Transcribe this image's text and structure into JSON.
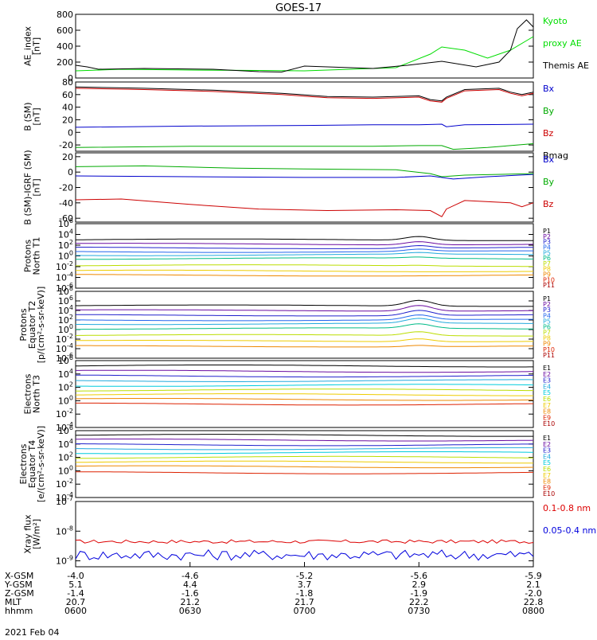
{
  "title": "GOES-17",
  "date": "2021 Feb 04",
  "panels": [
    {
      "id": "ae",
      "ylabel": [
        "AE_index",
        "[nT]"
      ],
      "ticks": [
        "800",
        "600",
        "400",
        "200",
        "0"
      ],
      "legend": [
        {
          "text": "Kyoto",
          "color": "#00dd00"
        },
        {
          "text": "proxy AE",
          "color": "#00dd00"
        },
        {
          "text": "Themis AE",
          "color": "#000000"
        }
      ]
    },
    {
      "id": "bsm",
      "ylabel": [
        "B (SM)",
        "[nT]"
      ],
      "ticks": [
        "80",
        "60",
        "40",
        "20",
        "0",
        "-20"
      ],
      "legend": [
        {
          "text": "Bx",
          "color": "#0000cc"
        },
        {
          "text": "By",
          "color": "#00aa00"
        },
        {
          "text": "Bz",
          "color": "#cc0000"
        },
        {
          "text": "Bmag",
          "color": "#000000"
        }
      ]
    },
    {
      "id": "bigrf",
      "ylabel": [
        "B (SM)-IGRF (SM)",
        "[nT]"
      ],
      "ticks": [
        "20",
        "0",
        "-20",
        "-40",
        "-60"
      ],
      "legend": [
        {
          "text": "Bx",
          "color": "#0000cc"
        },
        {
          "text": "By",
          "color": "#00aa00"
        },
        {
          "text": "Bz",
          "color": "#cc0000"
        }
      ]
    },
    {
      "id": "pn",
      "ylabel": [
        "Protons",
        "North T1"
      ],
      "ticks": [
        "10^6",
        "10^4",
        "10^2",
        "10^0",
        "10^-2",
        "10^-4",
        "10^-6"
      ],
      "legend": [
        {
          "text": "P1",
          "color": "#000000"
        },
        {
          "text": "P2",
          "color": "#6a0ca0"
        },
        {
          "text": "P3",
          "color": "#2020cc"
        },
        {
          "text": "P4",
          "color": "#2266ee"
        },
        {
          "text": "P5",
          "color": "#22aadd"
        },
        {
          "text": "P6",
          "color": "#00bb88"
        },
        {
          "text": "P7",
          "color": "#bbdd00"
        },
        {
          "text": "P8",
          "color": "#eecc00"
        },
        {
          "text": "P9",
          "color": "#ee8800"
        },
        {
          "text": "P10",
          "color": "#dd2200"
        },
        {
          "text": "P11",
          "color": "#aa0000"
        }
      ]
    },
    {
      "id": "pe",
      "ylabel": [
        "Protons",
        "Equator T2",
        "[p/(cm²-s-sr-keV)]"
      ],
      "ticks": [
        "10^8",
        "10^6",
        "10^4",
        "10^2",
        "10^0",
        "10^-2",
        "10^-4",
        "10^-6"
      ],
      "legend": [
        {
          "text": "P1",
          "color": "#000000"
        },
        {
          "text": "P2",
          "color": "#6a0ca0"
        },
        {
          "text": "P3",
          "color": "#2020cc"
        },
        {
          "text": "P4",
          "color": "#2266ee"
        },
        {
          "text": "P5",
          "color": "#22aadd"
        },
        {
          "text": "P6",
          "color": "#00bb88"
        },
        {
          "text": "P7",
          "color": "#bbdd00"
        },
        {
          "text": "P8",
          "color": "#eecc00"
        },
        {
          "text": "P9",
          "color": "#ee8800"
        },
        {
          "text": "P10",
          "color": "#dd2200"
        },
        {
          "text": "P11",
          "color": "#aa0000"
        }
      ]
    },
    {
      "id": "en",
      "ylabel": [
        "Electrons",
        "North T3"
      ],
      "ticks": [
        "10^6",
        "10^4",
        "10^2",
        "10^0",
        "10^-2",
        "10^-4"
      ],
      "legend": [
        {
          "text": "E1",
          "color": "#000000"
        },
        {
          "text": "E2",
          "color": "#6a0ca0"
        },
        {
          "text": "E3",
          "color": "#2020cc"
        },
        {
          "text": "E4",
          "color": "#22aadd"
        },
        {
          "text": "E5",
          "color": "#00ccdd"
        },
        {
          "text": "E6",
          "color": "#bbdd00"
        },
        {
          "text": "E7",
          "color": "#eecc00"
        },
        {
          "text": "E8",
          "color": "#ee8800"
        },
        {
          "text": "E9",
          "color": "#dd2200"
        },
        {
          "text": "E10",
          "color": "#aa0000"
        }
      ]
    },
    {
      "id": "ee",
      "ylabel": [
        "Electrons",
        "Equator T4",
        "[e/(cm²-s-sr-keV)]"
      ],
      "ticks": [
        "10^6",
        "10^4",
        "10^2",
        "10^0",
        "10^-2",
        "10^-4"
      ],
      "legend": [
        {
          "text": "E1",
          "color": "#000000"
        },
        {
          "text": "E2",
          "color": "#6a0ca0"
        },
        {
          "text": "E3",
          "color": "#2020cc"
        },
        {
          "text": "E4",
          "color": "#22aadd"
        },
        {
          "text": "E5",
          "color": "#00ccdd"
        },
        {
          "text": "E6",
          "color": "#bbdd00"
        },
        {
          "text": "E7",
          "color": "#eecc00"
        },
        {
          "text": "E8",
          "color": "#ee8800"
        },
        {
          "text": "E9",
          "color": "#dd2200"
        },
        {
          "text": "E10",
          "color": "#aa0000"
        }
      ]
    },
    {
      "id": "xray",
      "ylabel": [
        "Xray flux",
        "[W/m²]"
      ],
      "ticks": [
        "10^-7",
        "10^-8",
        "10^-9"
      ],
      "legend": [
        {
          "text": "0.1-0.8 nm",
          "color": "#dd0000"
        },
        {
          "text": "0.05-0.4 nm",
          "color": "#0000dd"
        }
      ]
    }
  ],
  "xaxis": {
    "rows": [
      {
        "label": "X-GSM",
        "values": [
          "-4.0",
          "-4.6",
          "-5.2",
          "-5.6",
          "-5.9"
        ]
      },
      {
        "label": "Y-GSM",
        "values": [
          "5.1",
          "4.4",
          "3.7",
          "2.9",
          "2.1"
        ]
      },
      {
        "label": "Z-GSM",
        "values": [
          "-1.4",
          "-1.6",
          "-1.8",
          "-1.9",
          "-2.0"
        ]
      },
      {
        "label": "MLT",
        "values": [
          "20.7",
          "21.2",
          "21.7",
          "22.2",
          "22.8"
        ]
      },
      {
        "label": "hhmm",
        "values": [
          "0600",
          "0630",
          "0700",
          "0730",
          "0800"
        ]
      }
    ]
  },
  "chart_data": {
    "type": "line",
    "x_unit": "UT time (hours, 2021 Feb 04)",
    "xlim": [
      6.0,
      8.0
    ],
    "panels": [
      {
        "id": "ae",
        "ylim": [
          0,
          800
        ],
        "scale": "linear",
        "series": [
          {
            "name": "Kyoto proxy AE",
            "color": "#00dd00",
            "x": [
              6.0,
              6.2,
              6.5,
              6.8,
              7.0,
              7.2,
              7.4,
              7.55,
              7.6,
              7.7,
              7.8,
              7.9,
              8.0
            ],
            "y": [
              90,
              110,
              100,
              95,
              90,
              110,
              130,
              300,
              390,
              350,
              250,
              350,
              520
            ]
          },
          {
            "name": "Themis AE",
            "color": "#000000",
            "x": [
              6.0,
              6.05,
              6.1,
              6.3,
              6.6,
              6.8,
              6.9,
              7.0,
              7.1,
              7.3,
              7.45,
              7.6,
              7.75,
              7.85,
              7.9,
              7.93,
              7.97,
              8.0
            ],
            "y": [
              160,
              140,
              110,
              120,
              110,
              80,
              75,
              150,
              140,
              120,
              160,
              210,
              140,
              200,
              350,
              620,
              730,
              640
            ]
          }
        ]
      },
      {
        "id": "bsm",
        "ylim": [
          -30,
          80
        ],
        "scale": "linear",
        "series": [
          {
            "name": "Bx",
            "color": "#0000cc",
            "x": [
              6.0,
              6.5,
              7.0,
              7.3,
              7.5,
              7.6,
              7.62,
              7.7,
              8.0
            ],
            "y": [
              8,
              10,
              11,
              12,
              12,
              13,
              9,
              12,
              13
            ]
          },
          {
            "name": "By",
            "color": "#00aa00",
            "x": [
              6.0,
              6.5,
              7.0,
              7.3,
              7.5,
              7.6,
              7.65,
              7.8,
              8.0
            ],
            "y": [
              -24,
              -22,
              -22,
              -22,
              -21,
              -21,
              -27,
              -24,
              -18
            ]
          },
          {
            "name": "Bz",
            "color": "#cc0000",
            "x": [
              6.0,
              6.3,
              6.6,
              6.9,
              7.1,
              7.3,
              7.5,
              7.55,
              7.6,
              7.62,
              7.7,
              7.85,
              7.9,
              7.95,
              8.0
            ],
            "y": [
              70,
              68,
              65,
              60,
              55,
              54,
              56,
              50,
              48,
              54,
              66,
              68,
              62,
              58,
              62
            ]
          },
          {
            "name": "Bmag",
            "color": "#000000",
            "x": [
              6.0,
              6.3,
              6.6,
              6.9,
              7.1,
              7.3,
              7.5,
              7.55,
              7.6,
              7.62,
              7.7,
              7.85,
              7.9,
              7.95,
              8.0
            ],
            "y": [
              72,
              70,
              67,
              62,
              57,
              56,
              58,
              52,
              50,
              56,
              68,
              70,
              64,
              60,
              64
            ]
          }
        ]
      },
      {
        "id": "bigrf",
        "ylim": [
          -65,
          25
        ],
        "scale": "linear",
        "series": [
          {
            "name": "Bx",
            "color": "#0000cc",
            "x": [
              6.0,
              6.5,
              7.0,
              7.4,
              7.55,
              7.65,
              7.8,
              8.0
            ],
            "y": [
              -5,
              -6,
              -7,
              -7,
              -5,
              -9,
              -6,
              -3
            ]
          },
          {
            "name": "By",
            "color": "#00aa00",
            "x": [
              6.0,
              6.3,
              6.7,
              7.0,
              7.4,
              7.55,
              7.6,
              7.7,
              8.0
            ],
            "y": [
              7,
              8,
              5,
              4,
              3,
              -2,
              -6,
              -4,
              -2
            ]
          },
          {
            "name": "Bz",
            "color": "#cc0000",
            "x": [
              6.0,
              6.2,
              6.5,
              6.8,
              7.1,
              7.4,
              7.55,
              7.6,
              7.62,
              7.7,
              7.9,
              7.95,
              8.0
            ],
            "y": [
              -36,
              -35,
              -42,
              -48,
              -50,
              -49,
              -50,
              -58,
              -48,
              -37,
              -40,
              -45,
              -40
            ]
          }
        ]
      },
      {
        "id": "pn",
        "ylim": [
          -6,
          6
        ],
        "scale": "log10",
        "series": [
          {
            "name": "P1",
            "color": "#000000",
            "level": 3.0,
            "bump": 0.7
          },
          {
            "name": "P2",
            "color": "#6a0ca0",
            "level": 2.2,
            "bump": 0.6
          },
          {
            "name": "P3",
            "color": "#2020cc",
            "level": 1.5,
            "bump": 0.5
          },
          {
            "name": "P4",
            "color": "#2266ee",
            "level": 0.8,
            "bump": 0.4
          },
          {
            "name": "P5",
            "color": "#22aadd",
            "level": 0.2,
            "bump": 0.3
          },
          {
            "name": "P6",
            "color": "#00bb88",
            "level": -0.5,
            "bump": 0.2
          },
          {
            "name": "P7",
            "color": "#bbdd00",
            "level": -1.8,
            "bump": 0.1
          },
          {
            "name": "P8",
            "color": "#eecc00",
            "level": -2.8,
            "bump": 0.0
          },
          {
            "name": "P9",
            "color": "#ee8800",
            "level": -3.6,
            "bump": 0.0
          }
        ]
      },
      {
        "id": "pe",
        "ylim": [
          -6,
          8
        ],
        "scale": "log10",
        "series": [
          {
            "name": "P1",
            "color": "#000000",
            "level": 5.0,
            "bump": 1.2
          },
          {
            "name": "P2",
            "color": "#6a0ca0",
            "level": 4.0,
            "bump": 1.2
          },
          {
            "name": "P3",
            "color": "#2020cc",
            "level": 3.0,
            "bump": 1.1
          },
          {
            "name": "P4",
            "color": "#2266ee",
            "level": 2.0,
            "bump": 1.0
          },
          {
            "name": "P5",
            "color": "#22aadd",
            "level": 1.2,
            "bump": 1.0
          },
          {
            "name": "P6",
            "color": "#00bb88",
            "level": 0.2,
            "bump": 0.9
          },
          {
            "name": "P7",
            "color": "#bbdd00",
            "level": -1.2,
            "bump": 0.8
          },
          {
            "name": "P8",
            "color": "#eecc00",
            "level": -2.4,
            "bump": 0.6
          },
          {
            "name": "P9",
            "color": "#ee8800",
            "level": -3.5,
            "bump": 0.3
          }
        ]
      },
      {
        "id": "en",
        "ylim": [
          -4,
          6
        ],
        "scale": "log10",
        "series": [
          {
            "name": "E1",
            "color": "#000000",
            "level": 5.2,
            "bump": 0
          },
          {
            "name": "E2",
            "color": "#6a0ca0",
            "level": 4.4,
            "bump": 0
          },
          {
            "name": "E3",
            "color": "#2020cc",
            "level": 3.7,
            "bump": 0
          },
          {
            "name": "E4",
            "color": "#22aadd",
            "level": 3.0,
            "bump": 0
          },
          {
            "name": "E5",
            "color": "#00ccdd",
            "level": 2.3,
            "bump": 0
          },
          {
            "name": "E6",
            "color": "#bbdd00",
            "level": 1.6,
            "bump": 0
          },
          {
            "name": "E7",
            "color": "#eecc00",
            "level": 0.9,
            "bump": 0
          },
          {
            "name": "E8",
            "color": "#ee8800",
            "level": 0.2,
            "bump": 0
          },
          {
            "name": "E9",
            "color": "#dd2200",
            "level": -0.5,
            "bump": 0
          }
        ]
      },
      {
        "id": "ee",
        "ylim": [
          -4,
          6
        ],
        "scale": "log10",
        "series": [
          {
            "name": "E1",
            "color": "#000000",
            "level": 5.3,
            "bump": 0
          },
          {
            "name": "E2",
            "color": "#6a0ca0",
            "level": 4.6,
            "bump": 0
          },
          {
            "name": "E3",
            "color": "#2020cc",
            "level": 3.9,
            "bump": 0
          },
          {
            "name": "E4",
            "color": "#22aadd",
            "level": 3.3,
            "bump": 0
          },
          {
            "name": "E5",
            "color": "#00ccdd",
            "level": 2.7,
            "bump": 0
          },
          {
            "name": "E6",
            "color": "#bbdd00",
            "level": 2.0,
            "bump": 0
          },
          {
            "name": "E7",
            "color": "#eecc00",
            "level": 1.3,
            "bump": 0
          },
          {
            "name": "E8",
            "color": "#ee8800",
            "level": 0.6,
            "bump": 0
          },
          {
            "name": "E9",
            "color": "#dd2200",
            "level": -0.3,
            "bump": 0
          }
        ]
      },
      {
        "id": "xray",
        "ylim": [
          -9.2,
          -7
        ],
        "scale": "log10",
        "series": [
          {
            "name": "0.1-0.8 nm",
            "color": "#dd0000",
            "level": -8.35,
            "noise": 0.06
          },
          {
            "name": "0.05-0.4 nm",
            "color": "#0000dd",
            "level": -8.8,
            "noise": 0.18
          }
        ]
      }
    ]
  }
}
